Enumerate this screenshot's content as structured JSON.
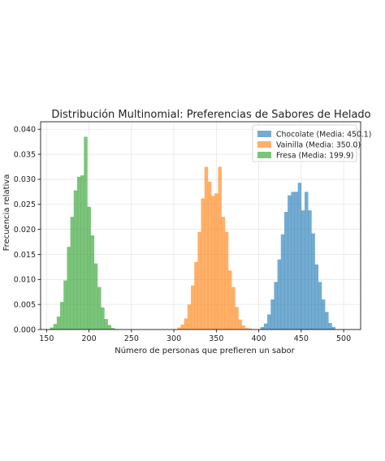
{
  "chart_data": {
    "type": "histogram",
    "title": "Distribución Multinomial: Preferencias de Sabores de Helado",
    "xlabel": "Número de personas que prefieren un sabor",
    "ylabel": "Frecuencia relativa",
    "xlim": [
      143,
      520
    ],
    "ylim": [
      0,
      0.0415
    ],
    "xticks": [
      150,
      200,
      250,
      300,
      350,
      400,
      450,
      500
    ],
    "yticks": [
      0.0,
      0.005,
      0.01,
      0.015,
      0.02,
      0.025,
      0.03,
      0.035,
      0.04
    ],
    "grid": true,
    "legend_position": "top-right",
    "bin_width": 4,
    "series": [
      {
        "name": "Chocolate (Media: 450.1)",
        "color": "#1f77b4",
        "bin_start": 402,
        "values": [
          0.0005,
          0.0012,
          0.003,
          0.006,
          0.0095,
          0.014,
          0.019,
          0.0235,
          0.0268,
          0.0275,
          0.0275,
          0.0293,
          0.0238,
          0.0275,
          0.0238,
          0.0192,
          0.013,
          0.0095,
          0.006,
          0.0035,
          0.0013,
          0.0005
        ]
      },
      {
        "name": "Vainilla (Media: 350.0)",
        "color": "#ff7f0e",
        "bin_start": 304,
        "values": [
          0.0004,
          0.001,
          0.0022,
          0.005,
          0.0088,
          0.0135,
          0.0195,
          0.0262,
          0.0325,
          0.0295,
          0.0267,
          0.0272,
          0.0325,
          0.0225,
          0.0195,
          0.0118,
          0.0085,
          0.0045,
          0.002,
          0.0008,
          0.0003,
          0.0002
        ]
      },
      {
        "name": "Fresa (Media: 199.9)",
        "color": "#2ca02c",
        "bin_start": 154,
        "values": [
          0.0004,
          0.0011,
          0.0026,
          0.0055,
          0.0098,
          0.0165,
          0.0225,
          0.0278,
          0.0305,
          0.0308,
          0.0385,
          0.0245,
          0.0188,
          0.0132,
          0.0085,
          0.0044,
          0.0021,
          0.0009,
          0.0003,
          0.0001
        ]
      }
    ]
  }
}
